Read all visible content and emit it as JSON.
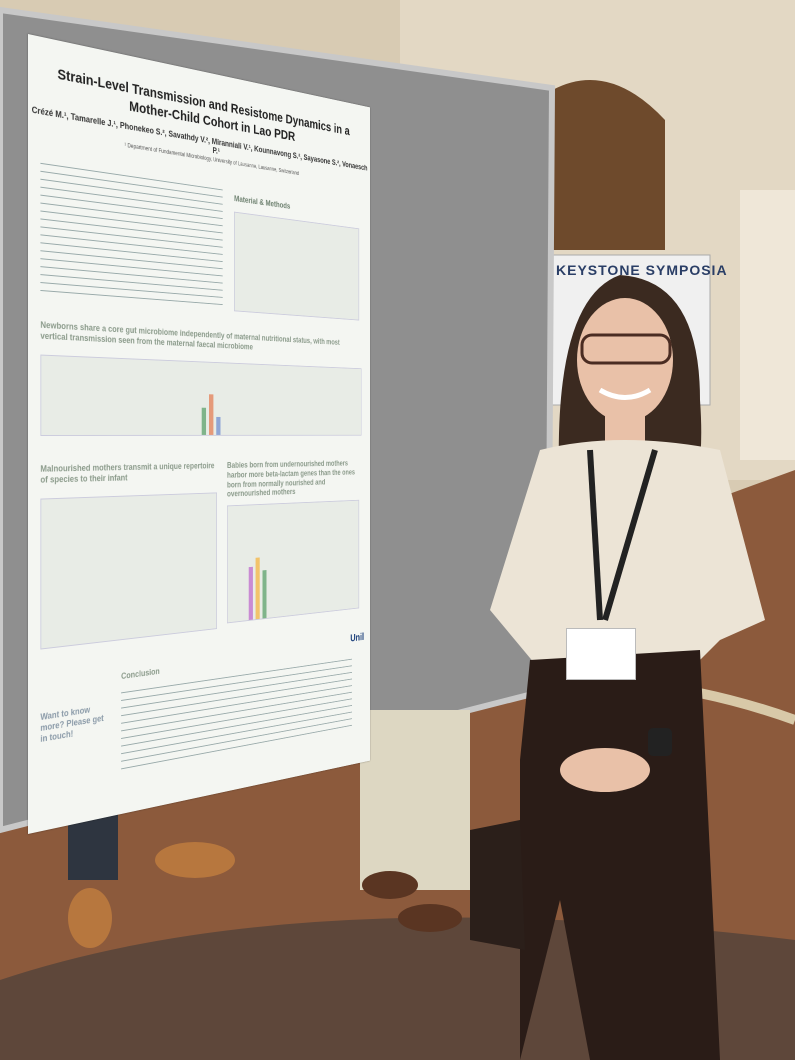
{
  "poster": {
    "title": "Strain-Level Transmission and Resistome Dynamics in a Mother-Child Cohort in Lao PDR",
    "authors": "Crézé M.¹, Tamarelle J.¹, Phonekeo S.², Savathdy V.², Miranniali V.¹, Kounnavong S.², Sayasone S.², Vonaesch P.¹",
    "affiliation": "¹ Department of Fundamental Microbiology, University of Lausanne, Lausanne, Switzerland",
    "methods_heading": "Material & Methods",
    "section_1": "Newborns share a core gut microbiome independently of maternal nutritional status, with most vertical transmission seen from the maternal faecal microbiome",
    "section_2": "Malnourished mothers transmit a unique repertoire of species to their infant",
    "section_3": "Babies born from undernourished mothers harbor more beta-lactam genes than the ones born from normally nourished and overnourished mothers",
    "conclusion_heading": "Conclusion",
    "contact": "Want to know more? Please get in touch!",
    "logo": "Unil"
  },
  "sign": "KEYSTONE SYMPOSIA"
}
